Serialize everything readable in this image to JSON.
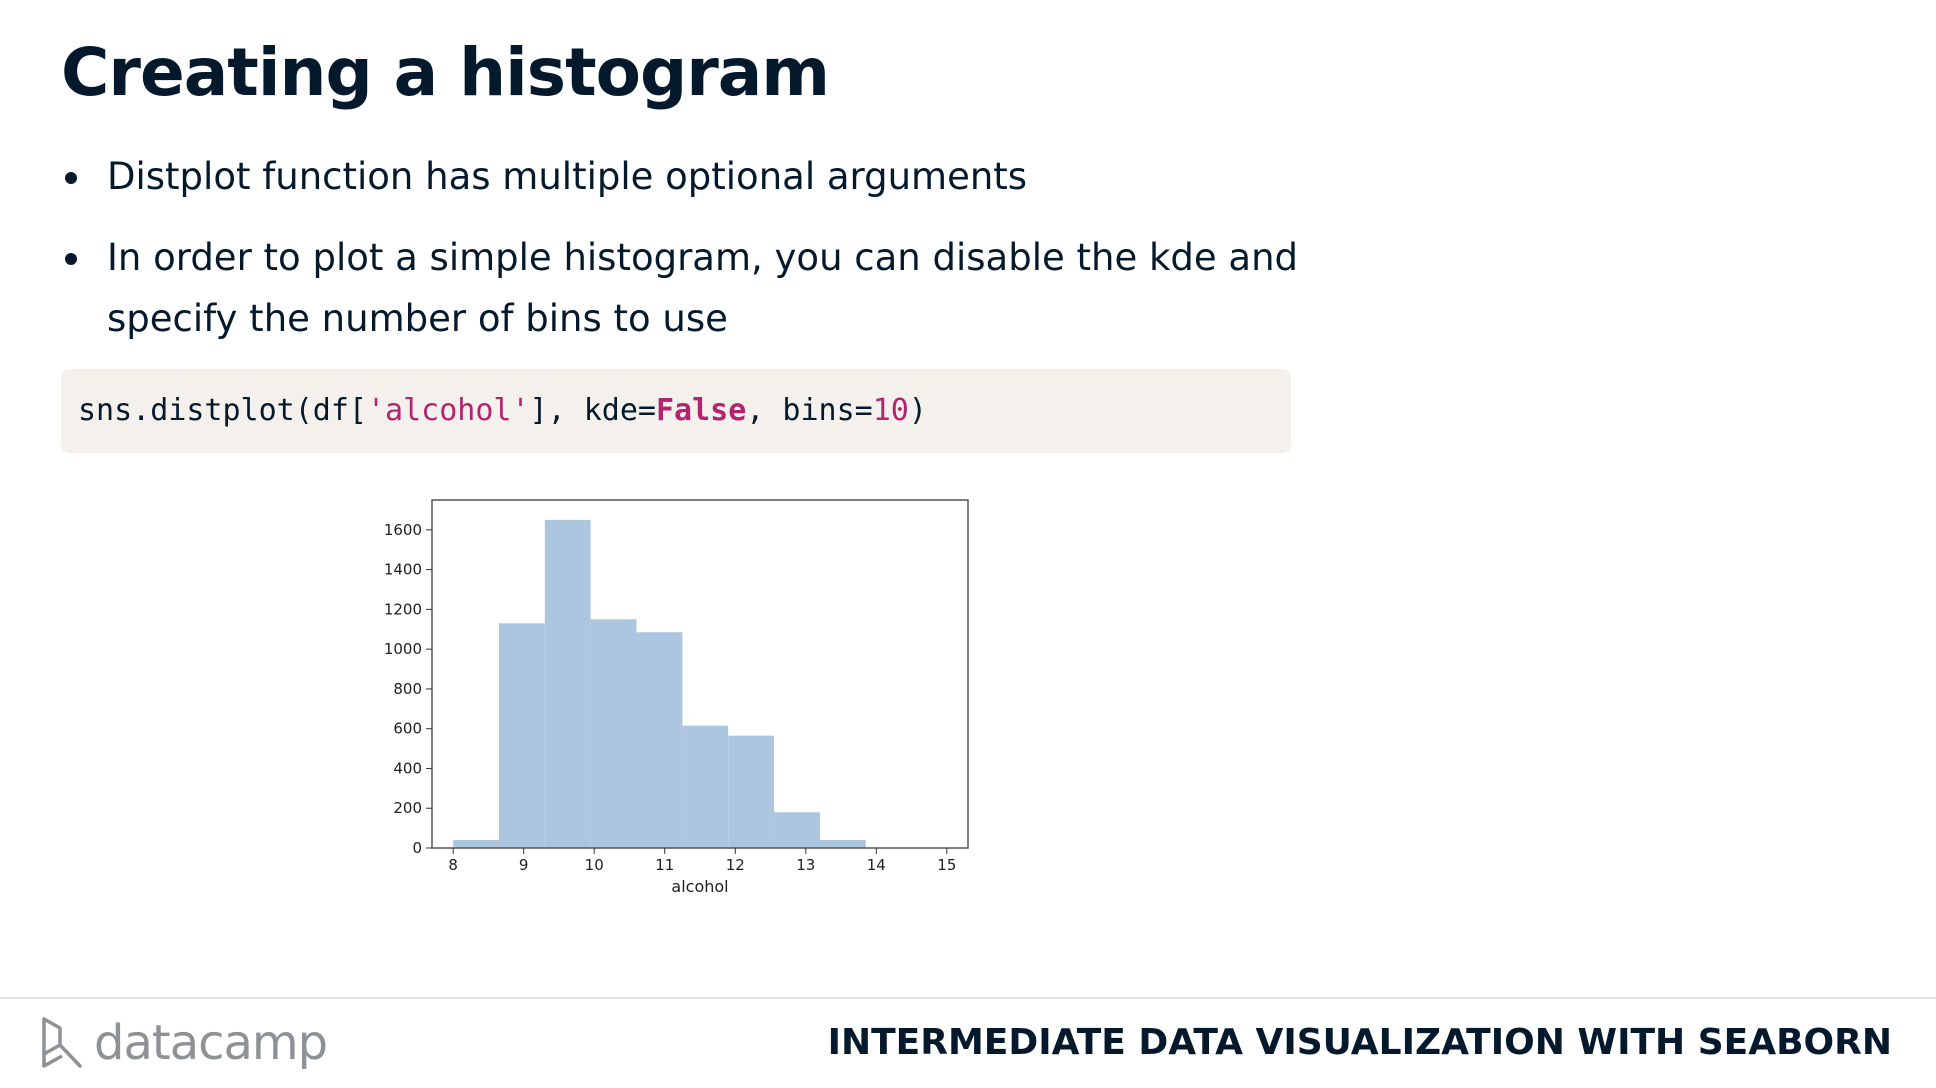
{
  "slide": {
    "title": "Creating a histogram",
    "bullets": [
      "Distplot function has multiple optional arguments",
      "In order to plot a simple histogram, you can disable the kde and specify the number of bins to use"
    ],
    "code": {
      "prefix": "sns.distplot(df[",
      "string": "'alcohol'",
      "mid": "], kde=",
      "keyword": "False",
      "mid2": ", bins=",
      "number": "10",
      "suffix": ")"
    }
  },
  "footer": {
    "brand": "datacamp",
    "logo_icon": "datacamp-logo-icon",
    "course": "INTERMEDIATE DATA VISUALIZATION WITH SEABORN"
  },
  "colors": {
    "bar_fill": "#adc6e0",
    "text": "#05192d",
    "code_bg": "#f4f1ed",
    "code_accent": "#b4236e"
  },
  "chart_data": {
    "type": "bar",
    "histogram": true,
    "xlabel": "alcohol",
    "ylabel": "",
    "bin_edges": [
      8.0,
      8.65,
      9.3,
      9.95,
      10.6,
      11.25,
      11.9,
      12.55,
      13.2,
      13.85,
      14.5
    ],
    "values": [
      40,
      1130,
      1650,
      1150,
      1085,
      615,
      565,
      180,
      40,
      0
    ],
    "xlim": [
      7.7,
      15.3
    ],
    "ylim": [
      0,
      1750
    ],
    "xticks": [
      8,
      9,
      10,
      11,
      12,
      13,
      14,
      15
    ],
    "yticks": [
      0,
      200,
      400,
      600,
      800,
      1000,
      1200,
      1400,
      1600
    ],
    "grid": false
  }
}
